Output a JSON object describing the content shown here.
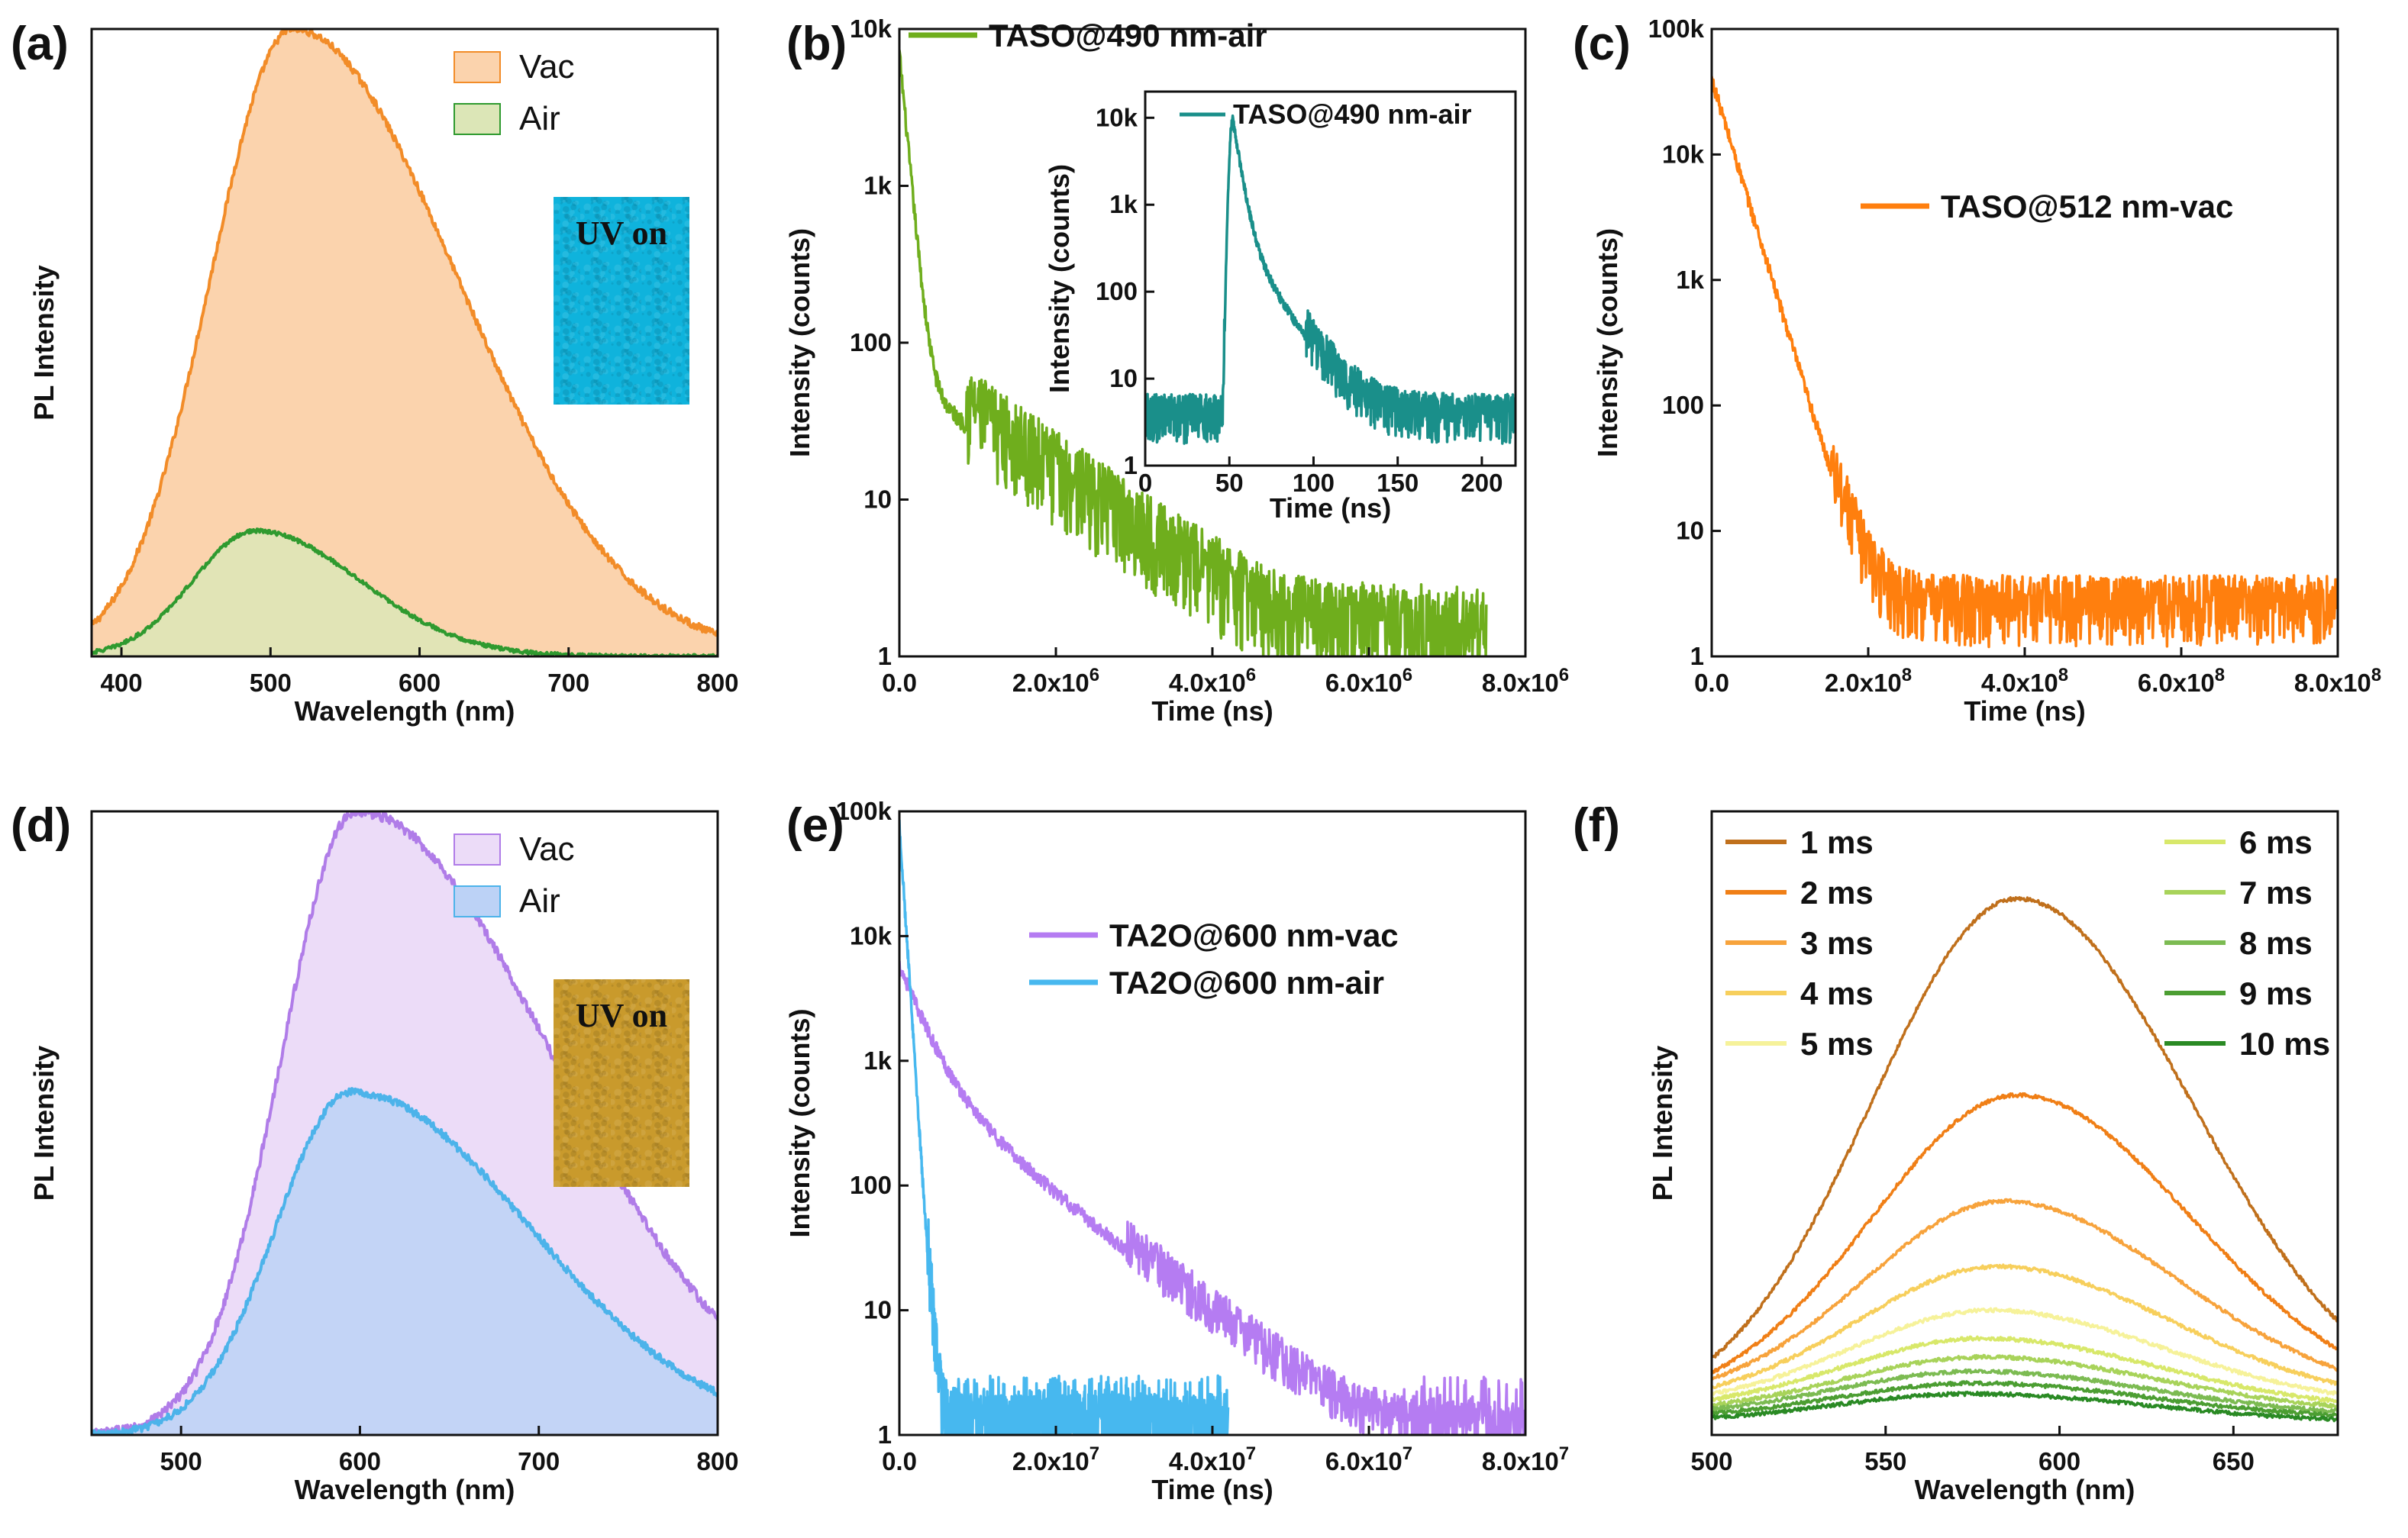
{
  "figure": {
    "colors": {
      "axis": "#111111",
      "background": "#ffffff"
    }
  },
  "chart_data": [
    {
      "id": "a",
      "panel_label": "(a)",
      "type": "area",
      "layout": "a",
      "xlabel": "Wavelength (nm)",
      "ylabel": "PL Intensity",
      "xlim": [
        380,
        800
      ],
      "ylim": [
        0,
        1.0
      ],
      "xticks": [
        400,
        500,
        600,
        700,
        800
      ],
      "xtick_labels": [
        "400",
        "500",
        "600",
        "700",
        "800"
      ],
      "yticks": [],
      "ytick_labels": [],
      "series": [
        {
          "name": "Vac",
          "kind": "gauss",
          "peak": 515,
          "amp": 1.0,
          "sl": 55,
          "sr": 110,
          "color": "#f28c28",
          "fill": "#fbd3ad",
          "noise": 0.006
        },
        {
          "name": "Air",
          "kind": "gauss",
          "peak": 490,
          "amp": 0.2,
          "sl": 42,
          "sr": 70,
          "color": "#2f9a2f",
          "fill": "#dce6b7",
          "noise": 0.003
        }
      ],
      "legend": {
        "position": "top-right",
        "style": "box"
      },
      "inset_photo": {
        "label": "UV on",
        "color": "#0fb3dc"
      }
    },
    {
      "id": "b",
      "panel_label": "(b)",
      "type": "line",
      "layout": "b",
      "ylog": true,
      "xlabel": "Time (ns)",
      "ylabel": "Intensity (counts)",
      "xlim": [
        0,
        8000000
      ],
      "ylim": [
        1,
        10000
      ],
      "xticks": [
        0,
        2000000,
        4000000,
        6000000,
        8000000
      ],
      "xtick_labels": [
        "0.0",
        "2.0x10^6",
        "4.0x10^6",
        "6.0x10^6",
        "8.0x10^6"
      ],
      "yticks": [
        1,
        10,
        100,
        1000,
        10000
      ],
      "ytick_labels": [
        "1",
        "10",
        "100",
        "1k",
        "10k"
      ],
      "series": [
        {
          "name": "TASO@490 nm-air",
          "kind": "decay",
          "x_end": 7500000,
          "peak_x": 0,
          "a1": 7000,
          "t1": 80000,
          "a2": 60,
          "t2": 1200000,
          "floor": 0.4,
          "noise": 1.0,
          "color": "#6fae1d"
        }
      ],
      "legend": {
        "position": "top-left",
        "style": "line"
      },
      "inset": {
        "type": "line",
        "ylog": true,
        "xlabel": "Time (ns)",
        "ylabel": "Intensity (counts)",
        "xlim": [
          0,
          220
        ],
        "ylim": [
          1,
          20000
        ],
        "xticks": [
          0,
          50,
          100,
          150,
          200
        ],
        "xtick_labels": [
          "0",
          "50",
          "100",
          "150",
          "200"
        ],
        "yticks": [
          1,
          10,
          100,
          1000,
          10000
        ],
        "ytick_labels": [
          "1",
          "10",
          "100",
          "1k",
          "10k"
        ],
        "series": [
          {
            "name": "TASO@490 nm-air",
            "kind": "decay",
            "x_end": 220,
            "peak_x": 52,
            "rise": 2,
            "a1": 9000,
            "t1": 3.5,
            "a2": 600,
            "t2": 14,
            "floor": 3.0,
            "noise": 0.9,
            "color": "#1a8f8a"
          }
        ]
      }
    },
    {
      "id": "c",
      "panel_label": "(c)",
      "type": "line",
      "layout": "c",
      "ylog": true,
      "xlabel": "Time (ns)",
      "ylabel": "Intensity (counts)",
      "xlim": [
        0,
        800000000
      ],
      "ylim": [
        1,
        100000
      ],
      "xticks": [
        0,
        200000000,
        400000000,
        600000000,
        800000000
      ],
      "xtick_labels": [
        "0.0",
        "2.0x10^8",
        "4.0x10^8",
        "6.0x10^8",
        "8.0x10^8"
      ],
      "yticks": [
        1,
        10,
        100,
        1000,
        10000,
        100000
      ],
      "ytick_labels": [
        "1",
        "10",
        "100",
        "1k",
        "10k",
        "100k"
      ],
      "series": [
        {
          "name": "TASO@512 nm-vac",
          "kind": "decay",
          "x_end": 800000000,
          "peak_x": 0,
          "a1": 40000,
          "t1": 21000000,
          "a2": 0,
          "t2": 1,
          "floor": 2.0,
          "noise": 0.9,
          "color": "#ff7f0e"
        }
      ],
      "legend": {
        "position": "center-right",
        "style": "line"
      }
    },
    {
      "id": "d",
      "panel_label": "(d)",
      "type": "area",
      "layout": "d",
      "xlabel": "Wavelength (nm)",
      "ylabel": "PL Intensity",
      "xlim": [
        450,
        800
      ],
      "ylim": [
        0,
        1.0
      ],
      "xticks": [
        500,
        600,
        700,
        800
      ],
      "xtick_labels": [
        "500",
        "600",
        "700",
        "800"
      ],
      "yticks": [],
      "ytick_labels": [],
      "series": [
        {
          "name": "Vac",
          "kind": "gauss",
          "peak": 598,
          "amp": 1.0,
          "sl": 42,
          "sr": 110,
          "color": "#b07ce8",
          "fill": "#ecdcf8",
          "noise": 0.008
        },
        {
          "name": "Air",
          "kind": "gauss",
          "peak": 595,
          "amp": 0.55,
          "sl": 42,
          "sr": 100,
          "color": "#4cb3ea",
          "fill": "#bcd2f6",
          "noise": 0.006
        }
      ],
      "legend": {
        "position": "top-right",
        "style": "box"
      },
      "inset_photo": {
        "label": "UV on",
        "color": "#c99a2c"
      }
    },
    {
      "id": "e",
      "panel_label": "(e)",
      "type": "line",
      "layout": "e",
      "ylog": true,
      "xlabel": "Time (ns)",
      "ylabel": "Intensity (counts)",
      "xlim": [
        0,
        80000000
      ],
      "ylim": [
        1,
        100000
      ],
      "xticks": [
        0,
        20000000,
        40000000,
        60000000,
        80000000
      ],
      "xtick_labels": [
        "0.0",
        "2.0x10^7",
        "4.0x10^7",
        "6.0x10^7",
        "8.0x10^7"
      ],
      "yticks": [
        1,
        10,
        100,
        1000,
        10000,
        100000
      ],
      "ytick_labels": [
        "1",
        "10",
        "100",
        "1k",
        "10k",
        "100k"
      ],
      "series": [
        {
          "name": "TA2O@600 nm-vac",
          "kind": "decay",
          "x_end": 80000000,
          "peak_x": 0,
          "a1": 5000,
          "t1": 2500000,
          "a2": 900,
          "t2": 8500000,
          "floor": 0.5,
          "noise": 0.6,
          "color": "#b57cf2"
        },
        {
          "name": "TA2O@600 nm-air",
          "kind": "decay",
          "x_end": 42000000,
          "peak_x": 0,
          "a1": 80000,
          "t1": 450000,
          "a2": 30,
          "t2": 1500000,
          "floor": 0.3,
          "noise": 0.9,
          "color": "#47b8ef"
        }
      ],
      "legend": {
        "position": "top-right",
        "style": "line"
      }
    },
    {
      "id": "f",
      "panel_label": "(f)",
      "type": "line",
      "layout": "f",
      "xlabel": "Wavelength (nm)",
      "ylabel": "PL Intensity",
      "xlim": [
        500,
        680
      ],
      "ylim": [
        0,
        1.0
      ],
      "xticks": [
        500,
        550,
        600,
        650
      ],
      "xtick_labels": [
        "500",
        "550",
        "600",
        "650"
      ],
      "yticks": [],
      "ytick_labels": [],
      "series": [
        {
          "name": "1 ms",
          "kind": "gauss",
          "peak": 588,
          "amp": 0.83,
          "sl": 42,
          "sr": 50,
          "base": 0.03,
          "color": "#c0701c",
          "noise": 0.003
        },
        {
          "name": "2 ms",
          "kind": "gauss",
          "peak": 588,
          "amp": 0.5,
          "sl": 42,
          "sr": 50,
          "base": 0.045,
          "color": "#f07f16",
          "noise": 0.003
        },
        {
          "name": "3 ms",
          "kind": "gauss",
          "peak": 584,
          "amp": 0.32,
          "sl": 40,
          "sr": 50,
          "base": 0.055,
          "color": "#f7a33c",
          "noise": 0.003
        },
        {
          "name": "4 ms",
          "kind": "gauss",
          "peak": 582,
          "amp": 0.22,
          "sl": 40,
          "sr": 50,
          "base": 0.05,
          "color": "#f7cf5c",
          "noise": 0.003
        },
        {
          "name": "5 ms",
          "kind": "gauss",
          "peak": 580,
          "amp": 0.155,
          "sl": 40,
          "sr": 50,
          "base": 0.045,
          "color": "#f6f29a",
          "noise": 0.003
        },
        {
          "name": "6 ms",
          "kind": "gauss",
          "peak": 578,
          "amp": 0.115,
          "sl": 40,
          "sr": 50,
          "base": 0.04,
          "color": "#d8e86a",
          "noise": 0.003
        },
        {
          "name": "7 ms",
          "kind": "gauss",
          "peak": 578,
          "amp": 0.09,
          "sl": 40,
          "sr": 50,
          "base": 0.035,
          "color": "#a8d35a",
          "noise": 0.003
        },
        {
          "name": "8 ms",
          "kind": "gauss",
          "peak": 576,
          "amp": 0.072,
          "sl": 40,
          "sr": 50,
          "base": 0.03,
          "color": "#7cbb52",
          "noise": 0.003
        },
        {
          "name": "9 ms",
          "kind": "gauss",
          "peak": 576,
          "amp": 0.058,
          "sl": 40,
          "sr": 50,
          "base": 0.025,
          "color": "#4c9e32",
          "noise": 0.003
        },
        {
          "name": "10 ms",
          "kind": "gauss",
          "peak": 575,
          "amp": 0.046,
          "sl": 40,
          "sr": 50,
          "base": 0.02,
          "color": "#2a8a24",
          "noise": 0.003
        }
      ],
      "legend": {
        "position": "top",
        "style": "line-two-columns"
      }
    }
  ]
}
